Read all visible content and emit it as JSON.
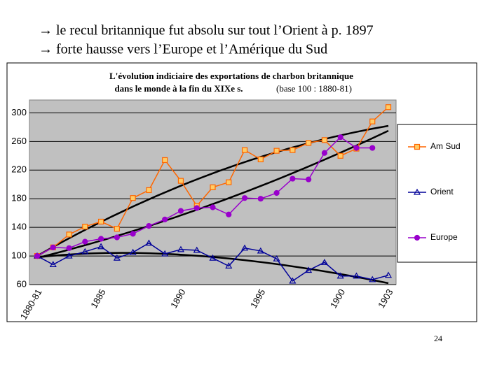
{
  "bullets": [
    "→ le recul britannique fut absolu sur tout l’Orient à p. 1897",
    "→ forte hausse vers l’Europe et l’Amérique du Sud"
  ],
  "page_number": "24",
  "chart_data": {
    "type": "line",
    "title": "L'évolution indiciaire des exportations de charbon britannique",
    "title_line2": "dans le monde à la fin du XIXe s.",
    "subtitle": "(base 100 : 1880-81)",
    "categories": [
      "1880-81",
      null,
      null,
      null,
      "1885",
      null,
      null,
      null,
      null,
      "1890",
      null,
      null,
      null,
      null,
      "1895",
      null,
      null,
      null,
      null,
      "1900",
      null,
      null,
      "1903"
    ],
    "series": [
      {
        "name": "Am Sud",
        "color": "#ff6600",
        "marker": "square",
        "values": [
          100,
          112,
          130,
          141,
          148,
          138,
          181,
          192,
          234,
          205,
          170,
          196,
          203,
          248,
          235,
          247,
          248,
          258,
          262,
          240,
          250,
          288,
          308
        ]
      },
      {
        "name": "Orient",
        "color": "#000099",
        "marker": "triangle",
        "values": [
          100,
          88,
          100,
          106,
          113,
          97,
          105,
          118,
          103,
          109,
          108,
          97,
          86,
          111,
          107,
          96,
          65,
          80,
          91,
          72,
          72,
          67,
          73
        ]
      },
      {
        "name": "Europe",
        "color": "#9900cc",
        "marker": "circle",
        "values": [
          100,
          112,
          111,
          120,
          124,
          126,
          131,
          142,
          151,
          163,
          167,
          168,
          158,
          181,
          180,
          188,
          208,
          207,
          244,
          266,
          251,
          251,
          null
        ]
      }
    ],
    "ylim": [
      60,
      318
    ],
    "yticks": [
      60,
      100,
      140,
      180,
      220,
      260,
      300
    ],
    "grid": true,
    "legend": "right"
  }
}
